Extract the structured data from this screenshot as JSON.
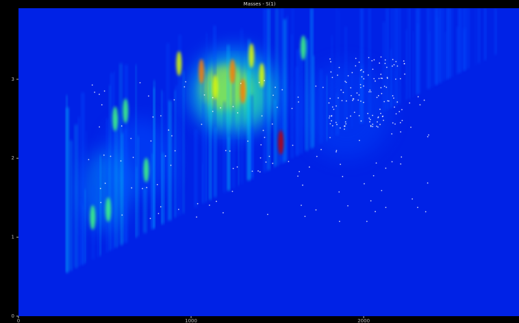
{
  "title": "Masses - S(1)",
  "chart_data": {
    "type": "heatmap",
    "title": "Masses - S(1)",
    "xlabel": "",
    "ylabel": "",
    "xlim": [
      0,
      2900
    ],
    "ylim": [
      0,
      3.9
    ],
    "x_ticks": [
      0,
      1000,
      2000
    ],
    "y_ticks": [
      0,
      1,
      2,
      3
    ],
    "colormap": [
      "#0000c8",
      "#0050ff",
      "#00c8ff",
      "#40ff80",
      "#e0ff00",
      "#ff8000",
      "#c00000"
    ],
    "background_color": "#0022e6",
    "grid": false,
    "legend": "none"
  }
}
